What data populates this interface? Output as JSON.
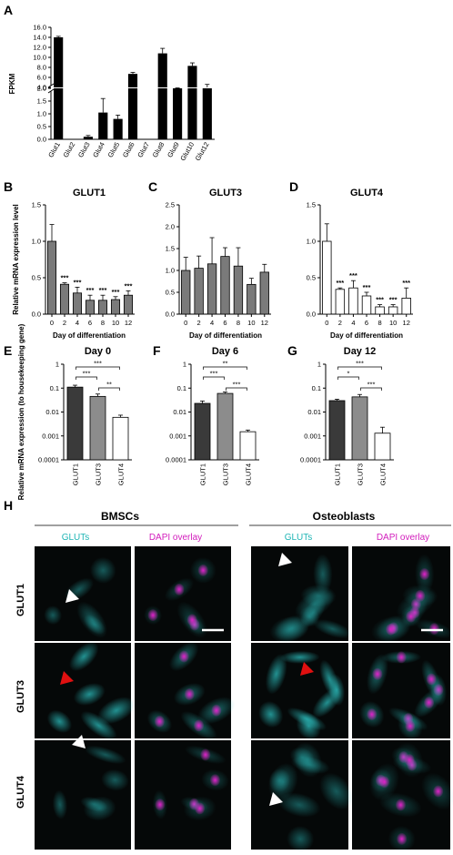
{
  "panel_letters": [
    "A",
    "B",
    "C",
    "D",
    "E",
    "F",
    "G",
    "H"
  ],
  "chart_data": [
    {
      "id": "A",
      "type": "bar",
      "categories": [
        "Glut1",
        "Glut2",
        "Glut3",
        "Glut4",
        "Glut5",
        "Glut6",
        "Glut7",
        "Glut8",
        "Glut9",
        "Glut10",
        "Glut12"
      ],
      "values": [
        14.0,
        0.0,
        0.1,
        1.05,
        0.8,
        6.7,
        0.0,
        10.8,
        3.4,
        8.3,
        4.0
      ],
      "errors": [
        0.2,
        0.0,
        0.05,
        0.55,
        0.15,
        0.3,
        0.0,
        1.0,
        0.5,
        0.6,
        0.6
      ],
      "ylabel": "FPKM",
      "axis_break": [
        2.0,
        4.0
      ],
      "yticks_lower": [
        "0.0",
        "0.5",
        "1.0",
        "1.5",
        "2.0"
      ],
      "yticks_upper": [
        "4.0",
        "6.0",
        "8.0",
        "10.0",
        "12.0",
        "14.0",
        "16.0"
      ]
    },
    {
      "id": "B",
      "type": "bar",
      "title": "GLUT1",
      "categories": [
        "0",
        "2",
        "4",
        "6",
        "8",
        "10",
        "12"
      ],
      "values": [
        1.0,
        0.41,
        0.29,
        0.19,
        0.19,
        0.2,
        0.26
      ],
      "errors": [
        0.23,
        0.02,
        0.08,
        0.07,
        0.07,
        0.04,
        0.06
      ],
      "significance": [
        "",
        "***",
        "***",
        "***",
        "***",
        "***",
        "***"
      ],
      "ylabel": "Relative mRNA expression level",
      "xlabel": "Day of differentiation",
      "ylim": [
        0,
        1.5
      ],
      "yticks": [
        "0.0",
        "0.5",
        "1.0",
        "1.5"
      ],
      "color": "#7a7a7a"
    },
    {
      "id": "C",
      "type": "bar",
      "title": "GLUT3",
      "categories": [
        "0",
        "2",
        "4",
        "6",
        "8",
        "10",
        "12"
      ],
      "values": [
        1.0,
        1.05,
        1.15,
        1.32,
        1.1,
        0.68,
        0.96
      ],
      "errors": [
        0.3,
        0.28,
        0.6,
        0.2,
        0.42,
        0.14,
        0.18
      ],
      "significance": [
        "",
        "",
        "",
        "",
        "",
        "",
        ""
      ],
      "xlabel": "Day of differentiation",
      "ylim": [
        0,
        2.5
      ],
      "yticks": [
        "0.0",
        "0.5",
        "1.0",
        "1.5",
        "2.0",
        "2.5"
      ],
      "color": "#7a7a7a"
    },
    {
      "id": "D",
      "type": "bar",
      "title": "GLUT4",
      "categories": [
        "0",
        "2",
        "4",
        "6",
        "8",
        "10",
        "12"
      ],
      "values": [
        1.0,
        0.34,
        0.36,
        0.25,
        0.1,
        0.1,
        0.22
      ],
      "errors": [
        0.24,
        0.02,
        0.1,
        0.05,
        0.03,
        0.03,
        0.14
      ],
      "significance": [
        "",
        "***",
        "***",
        "***",
        "***",
        "***",
        "***"
      ],
      "xlabel": "Day of differentiation",
      "ylim": [
        0,
        1.5
      ],
      "yticks": [
        "0.0",
        "0.5",
        "1.0",
        "1.5"
      ],
      "color": "#ffffff"
    },
    {
      "id": "E",
      "type": "bar",
      "title": "Day 0",
      "yscale": "log",
      "categories": [
        "GLUT1",
        "GLUT3",
        "GLUT4"
      ],
      "values": [
        0.11,
        0.045,
        0.006
      ],
      "errors_log": [
        0.08,
        0.1,
        0.09
      ],
      "colors": [
        "#3a3a3a",
        "#8c8c8c",
        "#ffffff"
      ],
      "brackets": [
        {
          "from": 0,
          "to": 2,
          "label": "***"
        },
        {
          "from": 0,
          "to": 1,
          "label": "***"
        },
        {
          "from": 1,
          "to": 2,
          "label": "**"
        }
      ],
      "ylabel": "Relative mRNA expression (to housekeeping gene)",
      "yticks": [
        "0.0001",
        "0.001",
        "0.01",
        "0.1",
        "1"
      ]
    },
    {
      "id": "F",
      "type": "bar",
      "title": "Day 6",
      "yscale": "log",
      "categories": [
        "GLUT1",
        "GLUT3",
        "GLUT4"
      ],
      "values": [
        0.023,
        0.06,
        0.0015
      ],
      "errors_log": [
        0.1,
        0.06,
        0.07
      ],
      "colors": [
        "#3a3a3a",
        "#8c8c8c",
        "#ffffff"
      ],
      "brackets": [
        {
          "from": 0,
          "to": 2,
          "label": "**"
        },
        {
          "from": 0,
          "to": 1,
          "label": "***"
        },
        {
          "from": 1,
          "to": 2,
          "label": "***"
        }
      ],
      "yticks": [
        "0.0001",
        "0.001",
        "0.01",
        "0.1",
        "1"
      ]
    },
    {
      "id": "G",
      "type": "bar",
      "title": "Day 12",
      "yscale": "log",
      "categories": [
        "GLUT1",
        "GLUT3",
        "GLUT4"
      ],
      "values": [
        0.03,
        0.043,
        0.0013
      ],
      "errors_log": [
        0.06,
        0.1,
        0.25
      ],
      "colors": [
        "#3a3a3a",
        "#8c8c8c",
        "#ffffff"
      ],
      "brackets": [
        {
          "from": 0,
          "to": 2,
          "label": "***"
        },
        {
          "from": 0,
          "to": 1,
          "label": "*"
        },
        {
          "from": 1,
          "to": 2,
          "label": "***"
        }
      ],
      "yticks": [
        "0.0001",
        "0.001",
        "0.01",
        "0.1",
        "1"
      ]
    }
  ],
  "micrographs": {
    "group_titles": [
      "BMSCs",
      "Osteoblasts"
    ],
    "column_labels": [
      "GLUTs",
      "DAPI overlay",
      "GLUTs",
      "DAPI overlay"
    ],
    "row_labels": [
      "GLUT1",
      "GLUT3",
      "GLUT4"
    ],
    "channel_colors": {
      "glut": "#2ec8c8",
      "dapi": "#e020c8"
    },
    "arrows": [
      {
        "row": 0,
        "col": 0,
        "color": "#ffffff"
      },
      {
        "row": 0,
        "col": 2,
        "color": "#ffffff"
      },
      {
        "row": 1,
        "col": 0,
        "color": "#e01010"
      },
      {
        "row": 1,
        "col": 2,
        "color": "#e01010"
      },
      {
        "row": 2,
        "col": 0,
        "color": "#ffffff"
      },
      {
        "row": 2,
        "col": 2,
        "color": "#ffffff"
      }
    ]
  }
}
